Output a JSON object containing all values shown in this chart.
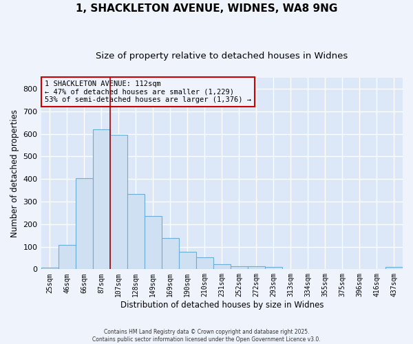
{
  "title": "1, SHACKLETON AVENUE, WIDNES, WA8 9NG",
  "subtitle": "Size of property relative to detached houses in Widnes",
  "xlabel": "Distribution of detached houses by size in Widnes",
  "ylabel": "Number of detached properties",
  "bar_labels": [
    "25sqm",
    "46sqm",
    "66sqm",
    "87sqm",
    "107sqm",
    "128sqm",
    "149sqm",
    "169sqm",
    "190sqm",
    "210sqm",
    "231sqm",
    "252sqm",
    "272sqm",
    "293sqm",
    "313sqm",
    "334sqm",
    "355sqm",
    "375sqm",
    "396sqm",
    "416sqm",
    "437sqm"
  ],
  "bar_values": [
    8,
    108,
    403,
    620,
    597,
    334,
    236,
    137,
    78,
    52,
    22,
    13,
    14,
    9,
    0,
    0,
    0,
    0,
    0,
    0,
    9
  ],
  "bar_color": "#cfe0f3",
  "bar_edge_color": "#6aaed6",
  "vline_x": 3.5,
  "vline_color": "#aa0000",
  "annotation_title": "1 SHACKLETON AVENUE: 112sqm",
  "annotation_line1": "← 47% of detached houses are smaller (1,229)",
  "annotation_line2": "53% of semi-detached houses are larger (1,376) →",
  "annotation_box_color": "#cc0000",
  "ylim": [
    0,
    850
  ],
  "yticks": [
    0,
    100,
    200,
    300,
    400,
    500,
    600,
    700,
    800
  ],
  "plot_bg_color": "#dce8f7",
  "fig_bg_color": "#eef3fc",
  "grid_color": "#ffffff",
  "title_fontsize": 11,
  "subtitle_fontsize": 9.5,
  "footer_line1": "Contains HM Land Registry data © Crown copyright and database right 2025.",
  "footer_line2": "Contains public sector information licensed under the Open Government Licence v3.0."
}
